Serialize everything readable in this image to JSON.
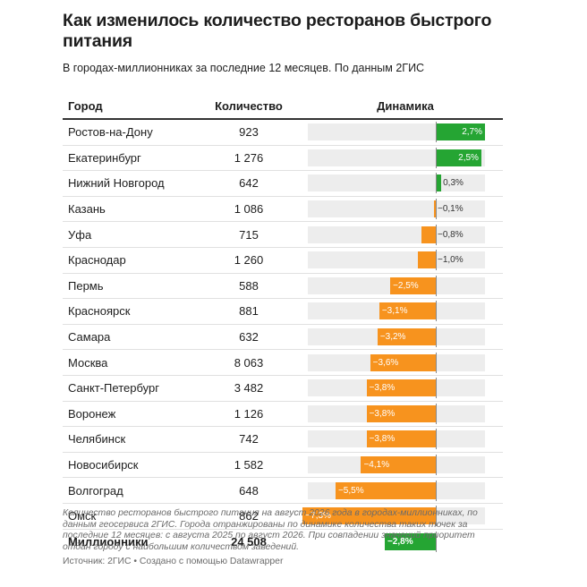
{
  "title": "Как изменилось количество ресторанов быстрого питания",
  "subtitle": "В городах-миллионниках за последние 12 месяцев. По данным 2ГИС",
  "columns": {
    "city": "Город",
    "count": "Количество",
    "dynamics": "Динамика"
  },
  "colors": {
    "positive": "#25a533",
    "negative": "#f7931e",
    "track": "#ededed"
  },
  "chart_data": {
    "type": "bar",
    "xlim": [
      -7.3,
      2.7
    ],
    "rows": [
      {
        "city": "Ростов-на-Дону",
        "count": "923",
        "value": 2.7,
        "label": "2,7%"
      },
      {
        "city": "Екатеринбург",
        "count": "1 276",
        "value": 2.5,
        "label": "2,5%"
      },
      {
        "city": "Нижний Новгород",
        "count": "642",
        "value": 0.3,
        "label": "0,3%"
      },
      {
        "city": "Казань",
        "count": "1 086",
        "value": -0.1,
        "label": "−0,1%"
      },
      {
        "city": "Уфа",
        "count": "715",
        "value": -0.8,
        "label": "−0,8%"
      },
      {
        "city": "Краснодар",
        "count": "1 260",
        "value": -1.0,
        "label": "−1,0%"
      },
      {
        "city": "Пермь",
        "count": "588",
        "value": -2.5,
        "label": "−2,5%"
      },
      {
        "city": "Красноярск",
        "count": "881",
        "value": -3.1,
        "label": "−3,1%"
      },
      {
        "city": "Самара",
        "count": "632",
        "value": -3.2,
        "label": "−3,2%"
      },
      {
        "city": "Москва",
        "count": "8 063",
        "value": -3.6,
        "label": "−3,6%"
      },
      {
        "city": "Санкт-Петербург",
        "count": "3 482",
        "value": -3.8,
        "label": "−3,8%"
      },
      {
        "city": "Воронеж",
        "count": "1 126",
        "value": -3.8,
        "label": "−3,8%"
      },
      {
        "city": "Челябинск",
        "count": "742",
        "value": -3.8,
        "label": "−3,8%"
      },
      {
        "city": "Новосибирск",
        "count": "1 582",
        "value": -4.1,
        "label": "−4,1%"
      },
      {
        "city": "Волгоград",
        "count": "648",
        "value": -5.5,
        "label": "−5,5%"
      },
      {
        "city": "Омск",
        "count": "862",
        "value": -7.3,
        "label": "−7,3%"
      }
    ],
    "total": {
      "city": "Миллионники",
      "count": "24 508",
      "value": -2.8,
      "label": "−2,8%",
      "color": "#25a533"
    }
  },
  "footnote": "Количество ресторанов быстрого питания на август 2026 года в городах-миллионниках, по данным геосервиса 2ГИС. Города отранжированы по динамике количества таких точек за последние 12 месяцев: с августа 2025 по август 2026. При совпадении значений приоритет отдан городу с наибольшим количеством заведений.",
  "source": "Источник: 2ГИС • Создано с помощью Datawrapper"
}
